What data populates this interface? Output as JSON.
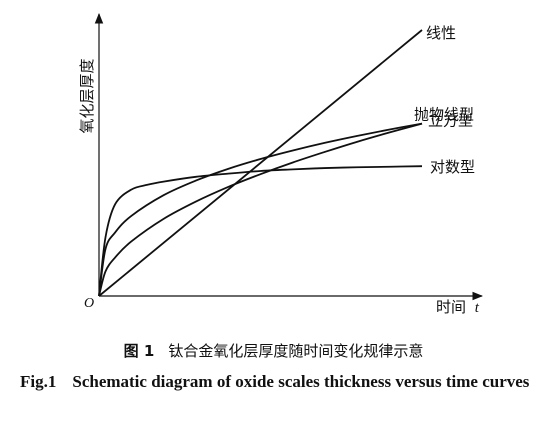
{
  "chart_data": {
    "type": "line",
    "y_axis_label": "氧化层厚度",
    "x_axis_label": "时间",
    "x_axis_symbol": "t",
    "origin_label": "O",
    "xlim": [
      0,
      1
    ],
    "ylim": [
      0,
      1
    ],
    "series": [
      {
        "name": "线性",
        "x": [
          0,
          1
        ],
        "y": [
          0,
          1
        ]
      },
      {
        "name": "抛物线型",
        "x": [
          0,
          0.02,
          0.05,
          0.1,
          0.2,
          0.3,
          0.4,
          0.5,
          0.6,
          0.7,
          0.8,
          0.9,
          1.0
        ],
        "y": [
          0,
          0.092,
          0.145,
          0.205,
          0.29,
          0.355,
          0.41,
          0.458,
          0.502,
          0.542,
          0.58,
          0.615,
          0.648
        ]
      },
      {
        "name": "立方型",
        "x": [
          0,
          0.02,
          0.05,
          0.1,
          0.2,
          0.3,
          0.4,
          0.5,
          0.6,
          0.7,
          0.8,
          0.9,
          1.0
        ],
        "y": [
          0,
          0.176,
          0.239,
          0.301,
          0.379,
          0.434,
          0.478,
          0.515,
          0.547,
          0.576,
          0.602,
          0.626,
          0.648
        ]
      },
      {
        "name": "对数型",
        "x": [
          0,
          0.02,
          0.05,
          0.1,
          0.15,
          0.2,
          0.3,
          0.4,
          0.5,
          0.6,
          0.7,
          0.8,
          0.9,
          1.0
        ],
        "y": [
          0,
          0.22,
          0.345,
          0.4,
          0.418,
          0.43,
          0.448,
          0.46,
          0.47,
          0.476,
          0.481,
          0.484,
          0.486,
          0.488
        ]
      }
    ]
  },
  "caption_cn": {
    "fig_no": "图 1",
    "text": "钛合金氧化层厚度随时间变化规律示意"
  },
  "caption_en": {
    "fig_no": "Fig.1",
    "text": "Schematic diagram of oxide scales thickness versus time curves"
  }
}
